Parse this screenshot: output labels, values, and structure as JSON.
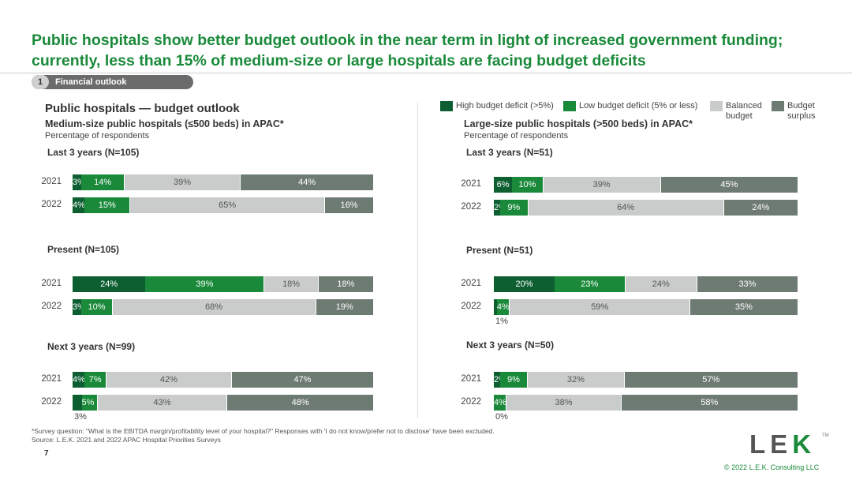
{
  "headline": "Public hospitals show better budget outlook in the near term in light of increased government funding; currently, less than 15% of medium-size or large hospitals are facing budget deficits",
  "section": {
    "number": "1",
    "label": "Financial outlook"
  },
  "legend": [
    {
      "label": "High budget deficit (>5%)",
      "color": "#0d5e30"
    },
    {
      "label": "Low budget deficit (5% or less)",
      "color": "#1a8a3a"
    },
    {
      "label": "Balanced budget",
      "color": "#c9ccca"
    },
    {
      "label": "Budget surplus",
      "color": "#6e7b73"
    }
  ],
  "left_main_title": "Public hospitals — budget outlook",
  "footnote": "*Survey question: \"What is the EBITDA margin/profitability level of your hospital?\" Responses with 'I do not know/prefer not to disclose' have been excluded.",
  "source": "Source: L.E.K. 2021 and 2022 APAC Hospital Priorities Surveys",
  "page_number": "7",
  "logo_text": "LEK",
  "copyright": "© 2022 L.E.K. Consulting LLC",
  "chart_data": [
    {
      "type": "bar",
      "stacked": true,
      "orientation": "horizontal",
      "title": "Medium-size public hospitals (≤500 beds) in APAC*",
      "subtitle": "Percentage of respondents",
      "series_names": [
        "High budget deficit (>5%)",
        "Low budget deficit (5% or less)",
        "Balanced budget",
        "Budget surplus"
      ],
      "panels": [
        {
          "label": "Last 3 years (N=105)",
          "rows": [
            {
              "year": "2021",
              "values": [
                3,
                14,
                39,
                44
              ]
            },
            {
              "year": "2022",
              "values": [
                4,
                15,
                65,
                16
              ]
            }
          ]
        },
        {
          "label": "Present (N=105)",
          "rows": [
            {
              "year": "2021",
              "values": [
                24,
                39,
                18,
                18
              ]
            },
            {
              "year": "2022",
              "values": [
                3,
                10,
                68,
                19
              ]
            }
          ]
        },
        {
          "label": "Next 3 years (N=99)",
          "rows": [
            {
              "year": "2021",
              "values": [
                4,
                7,
                42,
                47
              ]
            },
            {
              "year": "2022",
              "values": [
                3,
                5,
                43,
                48
              ],
              "outside": [
                0
              ]
            }
          ]
        }
      ]
    },
    {
      "type": "bar",
      "stacked": true,
      "orientation": "horizontal",
      "title": "Large-size public hospitals (>500 beds) in APAC*",
      "subtitle": "Percentage of respondents",
      "series_names": [
        "High budget deficit (>5%)",
        "Low budget deficit (5% or less)",
        "Balanced budget",
        "Budget surplus"
      ],
      "panels": [
        {
          "label": "Last 3 years (N=51)",
          "rows": [
            {
              "year": "2021",
              "values": [
                6,
                10,
                39,
                45
              ]
            },
            {
              "year": "2022",
              "values": [
                2,
                9,
                64,
                24
              ]
            }
          ]
        },
        {
          "label": "Present (N=51)",
          "rows": [
            {
              "year": "2021",
              "values": [
                20,
                23,
                24,
                33
              ]
            },
            {
              "year": "2022",
              "values": [
                1,
                4,
                59,
                35
              ],
              "outside": [
                0
              ]
            }
          ]
        },
        {
          "label": "Next 3 years (N=50)",
          "rows": [
            {
              "year": "2021",
              "values": [
                2,
                9,
                32,
                57
              ]
            },
            {
              "year": "2022",
              "values": [
                0,
                4,
                38,
                58
              ],
              "outside": [
                0
              ]
            }
          ]
        }
      ]
    }
  ]
}
